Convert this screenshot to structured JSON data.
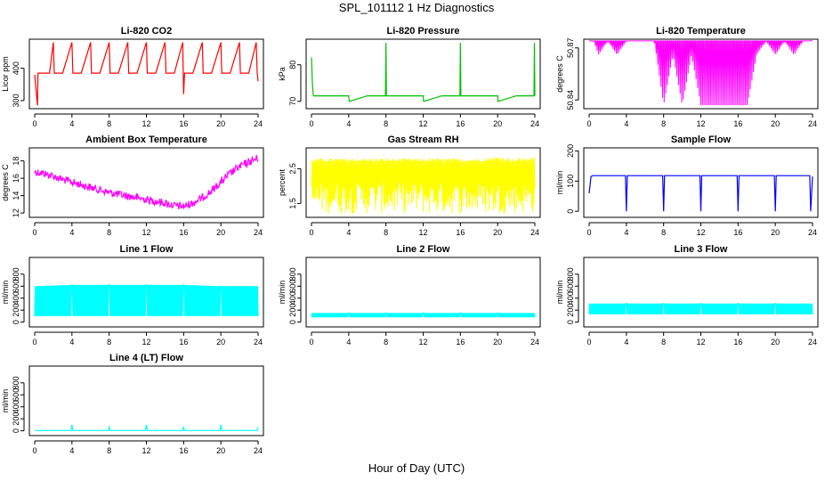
{
  "figure": {
    "title": "SPL_101112  1 Hz Diagnostics",
    "xlabel": "Hour of Day (UTC)"
  },
  "chart_data": [
    {
      "type": "line",
      "title": "Li-820 CO2",
      "ylabel": "Licor ppm",
      "color": "#ff0000",
      "xlim": [
        0,
        24
      ],
      "xticks": [
        0,
        4,
        8,
        12,
        16,
        20,
        24
      ],
      "ylim": [
        275,
        490
      ],
      "yticks": [
        300,
        400
      ],
      "x": [
        0,
        0.3,
        0.35,
        1,
        1.6,
        2.0,
        2.1,
        3,
        4,
        4.1,
        5,
        6,
        6.1,
        7,
        8,
        8.1,
        9,
        10,
        10.1,
        11,
        12,
        12.1,
        13,
        14,
        14.1,
        15,
        15.9,
        16,
        16.1,
        17,
        18,
        18.1,
        19,
        20,
        20.1,
        21,
        22,
        22.1,
        23,
        23.8,
        23.9,
        24
      ],
      "values": [
        380,
        285,
        385,
        385,
        385,
        480,
        385,
        385,
        480,
        385,
        385,
        480,
        385,
        385,
        480,
        385,
        385,
        480,
        385,
        385,
        480,
        385,
        385,
        480,
        385,
        385,
        480,
        320,
        385,
        385,
        480,
        385,
        385,
        480,
        385,
        385,
        480,
        385,
        385,
        480,
        385,
        360
      ]
    },
    {
      "type": "line",
      "title": "Li-820 Pressure",
      "ylabel": "kPa",
      "color": "#00c000",
      "xlim": [
        0,
        24
      ],
      "xticks": [
        0,
        4,
        8,
        12,
        16,
        20,
        24
      ],
      "ylim": [
        68,
        87
      ],
      "yticks": [
        70,
        80
      ],
      "x": [
        0,
        0.1,
        0.2,
        0.4,
        2,
        4,
        4.05,
        6,
        7.95,
        8,
        8.05,
        10,
        12,
        12.05,
        14,
        15.95,
        16,
        16.05,
        18,
        20,
        20.05,
        22,
        23.9,
        23.95,
        24
      ],
      "values": [
        82,
        75,
        71.5,
        71.5,
        71.5,
        71.5,
        70,
        71.5,
        71.5,
        86,
        71.5,
        71.5,
        71.5,
        70,
        71.5,
        71.5,
        86,
        71.5,
        71.5,
        71.5,
        70,
        71.5,
        71.5,
        86,
        71.5
      ]
    },
    {
      "type": "line",
      "title": "Li-820 Temperature",
      "ylabel": "degrees C",
      "color": "#ff00ff",
      "xlim": [
        0,
        24
      ],
      "xticks": [
        0,
        4,
        8,
        12,
        16,
        20,
        24
      ],
      "ylim": [
        50.835,
        50.875
      ],
      "yticks": [
        50.84,
        50.87
      ],
      "x": [
        0,
        0.5,
        1,
        2,
        3,
        4,
        5,
        6,
        7,
        8,
        9,
        10,
        11,
        12,
        13,
        14,
        15,
        16,
        17,
        18,
        19,
        20,
        21,
        22,
        23,
        24
      ],
      "values": [
        50.874,
        50.874,
        50.866,
        50.874,
        50.866,
        50.874,
        50.874,
        50.874,
        50.874,
        50.837,
        50.866,
        50.837,
        50.866,
        50.837,
        50.837,
        50.837,
        50.837,
        50.837,
        50.837,
        50.866,
        50.874,
        50.866,
        50.874,
        50.866,
        50.874,
        50.874
      ]
    },
    {
      "type": "line",
      "title": "Ambient Box Temperature",
      "ylabel": "degrees C",
      "color": "#ff00ff",
      "xlim": [
        0,
        24
      ],
      "xticks": [
        0,
        4,
        8,
        12,
        16,
        20,
        24
      ],
      "ylim": [
        11.5,
        19.5
      ],
      "yticks": [
        12,
        14,
        16,
        18
      ],
      "x": [
        0,
        1,
        2,
        3,
        4,
        5,
        6,
        7,
        8,
        9,
        10,
        11,
        12,
        13,
        14,
        15,
        16,
        17,
        18,
        19,
        20,
        21,
        22,
        23,
        24
      ],
      "values": [
        17.2,
        17.0,
        16.7,
        16.3,
        16.0,
        15.7,
        15.4,
        15.1,
        14.8,
        14.6,
        14.4,
        14.2,
        14.0,
        13.8,
        13.6,
        13.3,
        13.2,
        13.6,
        14.2,
        15.0,
        16.0,
        17.0,
        17.8,
        18.3,
        18.8
      ]
    },
    {
      "type": "line",
      "title": "Gas Stream RH",
      "ylabel": "percent",
      "color": "#ffff00",
      "xlim": [
        0,
        24
      ],
      "xticks": [
        0,
        4,
        8,
        12,
        16,
        20,
        24
      ],
      "ylim": [
        1.1,
        3.1
      ],
      "yticks": [
        1.5,
        2.5
      ],
      "x": [
        0,
        2,
        4,
        6,
        8,
        10,
        12,
        14,
        16,
        18,
        20,
        22,
        24
      ],
      "values": [
        2.7,
        2.7,
        2.7,
        2.7,
        2.7,
        2.7,
        2.7,
        2.7,
        2.7,
        2.7,
        2.75,
        2.7,
        2.75
      ]
    },
    {
      "type": "line",
      "title": "Sample Flow",
      "ylabel": "ml/min",
      "color": "#0000ff",
      "xlim": [
        0,
        24
      ],
      "xticks": [
        0,
        4,
        8,
        12,
        16,
        20,
        24
      ],
      "ylim": [
        -20,
        210
      ],
      "yticks": [
        0,
        100,
        200
      ],
      "x": [
        0,
        0.2,
        0.4,
        3.9,
        4,
        4.1,
        7.9,
        8,
        8.1,
        11.9,
        12,
        12.1,
        15.9,
        16,
        16.1,
        19.9,
        20,
        20.1,
        23.7,
        23.8,
        24
      ],
      "values": [
        60,
        115,
        118,
        118,
        0,
        118,
        118,
        0,
        118,
        118,
        0,
        118,
        118,
        0,
        118,
        118,
        0,
        118,
        118,
        0,
        115
      ]
    },
    {
      "type": "line",
      "title": "Line 1 Flow",
      "ylabel": "ml/min",
      "color": "#00ffff",
      "xlim": [
        0,
        24
      ],
      "xticks": [
        0,
        4,
        8,
        12,
        16,
        20,
        24
      ],
      "ylim": [
        -80,
        1080
      ],
      "yticks": [
        0,
        200,
        400,
        600,
        800
      ],
      "x": [
        0,
        4,
        8,
        12,
        16,
        20,
        24
      ],
      "values": [
        600,
        620,
        620,
        620,
        620,
        600,
        600
      ],
      "min_values": [
        100,
        100,
        100,
        100,
        100,
        100,
        100
      ]
    },
    {
      "type": "line",
      "title": "Line 2 Flow",
      "ylabel": "ml/min",
      "color": "#00ffff",
      "xlim": [
        0,
        24
      ],
      "xticks": [
        0,
        4,
        8,
        12,
        16,
        20,
        24
      ],
      "ylim": [
        -80,
        1080
      ],
      "yticks": [
        0,
        200,
        400,
        600,
        800
      ],
      "x": [
        0,
        4,
        8,
        12,
        16,
        20,
        24
      ],
      "values": [
        150,
        150,
        150,
        150,
        150,
        150,
        150
      ],
      "min_values": [
        80,
        80,
        80,
        80,
        80,
        80,
        80
      ]
    },
    {
      "type": "line",
      "title": "Line 3 Flow",
      "ylabel": "ml/min",
      "color": "#00ffff",
      "xlim": [
        0,
        24
      ],
      "xticks": [
        0,
        4,
        8,
        12,
        16,
        20,
        24
      ],
      "ylim": [
        -80,
        1080
      ],
      "yticks": [
        0,
        200,
        400,
        600,
        800
      ],
      "x": [
        0,
        4,
        8,
        12,
        16,
        20,
        24
      ],
      "values": [
        310,
        310,
        310,
        310,
        310,
        310,
        310
      ],
      "min_values": [
        130,
        130,
        130,
        130,
        130,
        130,
        130
      ]
    },
    {
      "type": "line",
      "title": "Line 4 (LT) Flow",
      "ylabel": "ml/min",
      "color": "#00ffff",
      "xlim": [
        0,
        24
      ],
      "xticks": [
        0,
        4,
        8,
        12,
        16,
        20,
        24
      ],
      "ylim": [
        -80,
        1080
      ],
      "yticks": [
        0,
        200,
        400,
        600,
        800
      ],
      "x": [
        0,
        3.9,
        4,
        4.1,
        7.9,
        8,
        8.1,
        11.9,
        12,
        12.1,
        15.9,
        16,
        16.1,
        19.9,
        20,
        20.1,
        23.9,
        24
      ],
      "values": [
        5,
        5,
        100,
        5,
        5,
        60,
        5,
        5,
        100,
        5,
        5,
        60,
        5,
        5,
        100,
        5,
        5,
        60
      ]
    }
  ]
}
